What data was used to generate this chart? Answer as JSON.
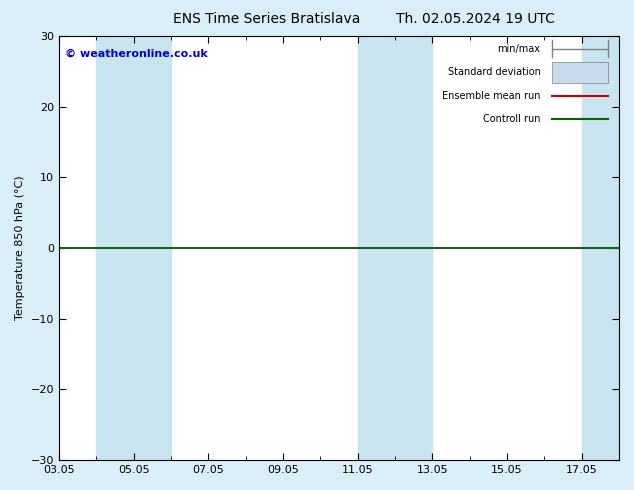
{
  "title_left": "ENS Time Series Bratislava",
  "title_right": "Th. 02.05.2024 19 UTC",
  "ylabel": "Temperature 850 hPa (°C)",
  "ylim": [
    -30,
    30
  ],
  "yticks": [
    -30,
    -20,
    -10,
    0,
    10,
    20,
    30
  ],
  "x_major_labels": [
    "03.05",
    "05.05",
    "07.05",
    "09.05",
    "11.05",
    "13.05",
    "15.05",
    "17.05"
  ],
  "x_major_positions": [
    0,
    2,
    4,
    6,
    8,
    10,
    12,
    14
  ],
  "xlim": [
    0,
    15
  ],
  "copyright_text": "© weatheronline.co.uk",
  "bg_color": "#daeef7",
  "plot_bg_color": "#ffffff",
  "band_color": "#c8e4f0",
  "zero_line_color": "#1a5e20",
  "legend_items": [
    {
      "label": "min/max",
      "color": "#a0b8cc",
      "type": "hbar"
    },
    {
      "label": "Standard deviation",
      "color": "#c8dced",
      "type": "box"
    },
    {
      "label": "Ensemble mean run",
      "color": "#cc0000",
      "type": "line"
    },
    {
      "label": "Controll run",
      "color": "#006600",
      "type": "line"
    }
  ],
  "shaded_bands": [
    {
      "x_start": 1.0,
      "x_end": 2.0
    },
    {
      "x_start": 2.0,
      "x_end": 3.0
    },
    {
      "x_start": 8.0,
      "x_end": 9.0
    },
    {
      "x_start": 9.0,
      "x_end": 10.0
    },
    {
      "x_start": 14.0,
      "x_end": 15.0
    }
  ],
  "title_fontsize": 10,
  "label_fontsize": 8,
  "tick_fontsize": 8,
  "copyright_fontsize": 8,
  "legend_fontsize": 7
}
